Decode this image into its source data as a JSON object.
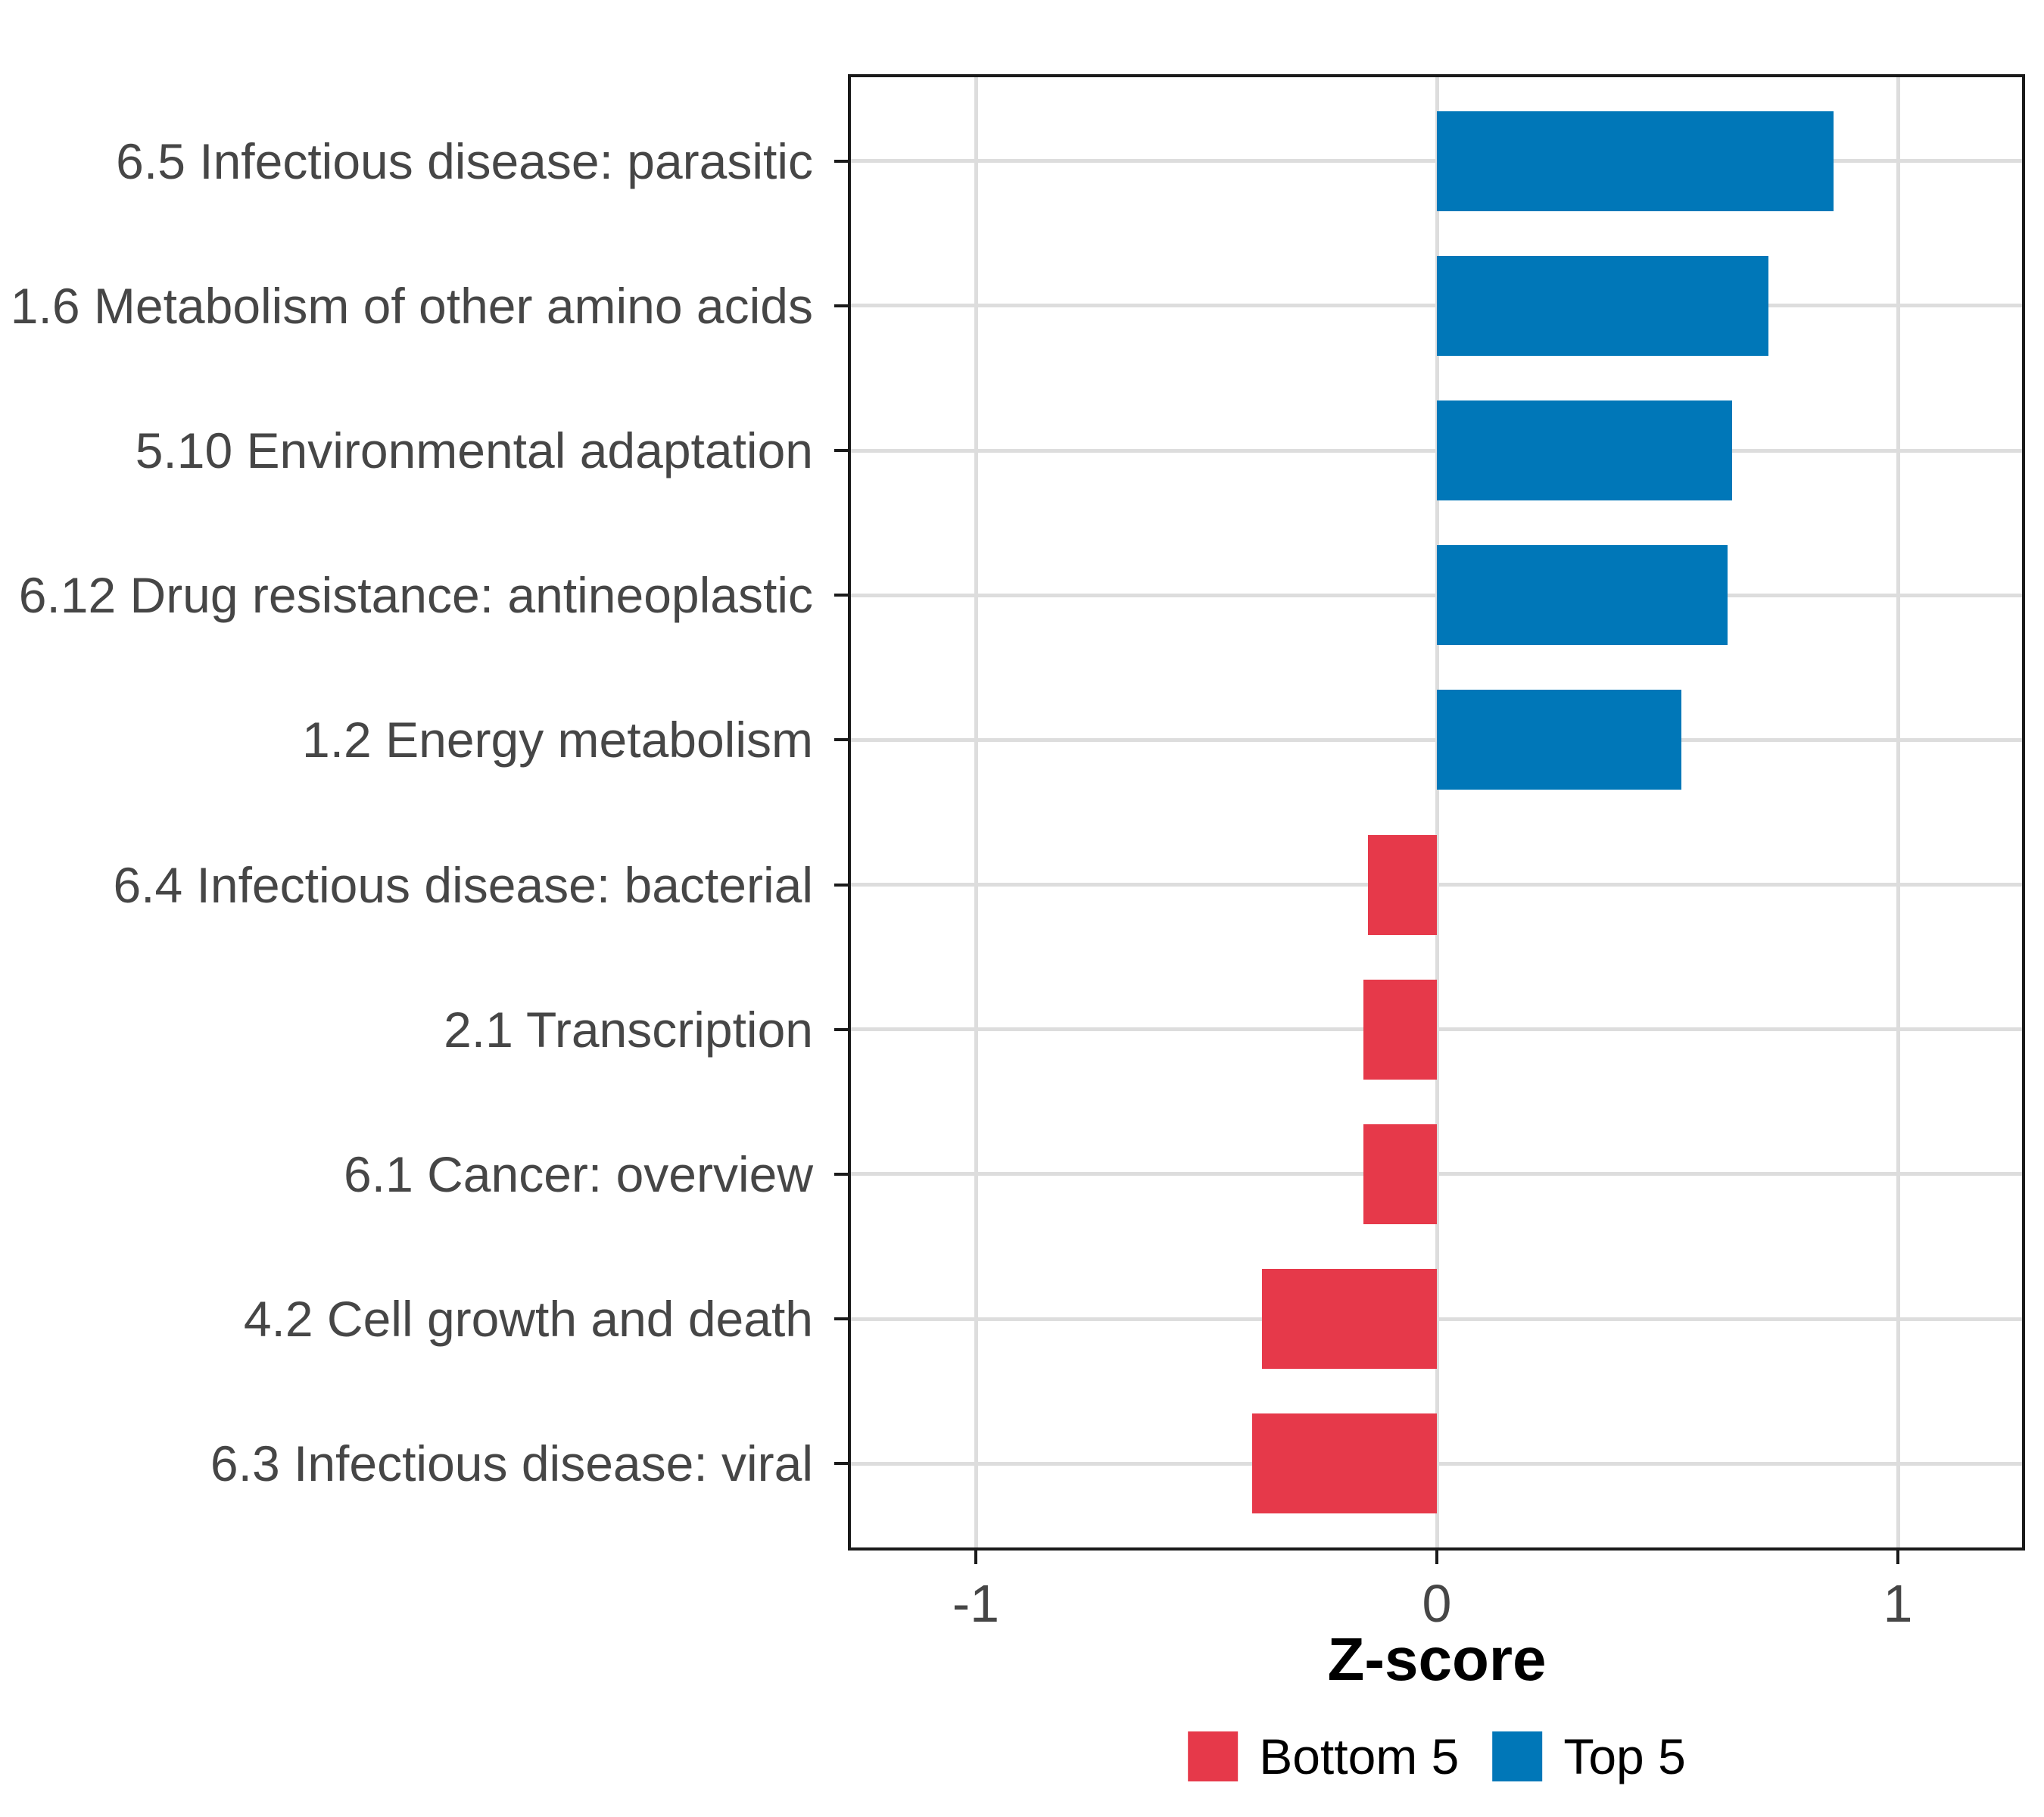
{
  "chart_data": {
    "type": "bar",
    "orientation": "horizontal",
    "categories": [
      "6.5 Infectious disease: parasitic",
      "1.6 Metabolism of other amino acids",
      "5.10 Environmental adaptation",
      "6.12 Drug resistance: antineoplastic",
      "1.2 Energy metabolism",
      "6.4 Infectious disease: bacterial",
      "2.1 Transcription",
      "6.1 Cancer: overview",
      "4.2 Cell growth and death",
      "6.3 Infectious disease: viral"
    ],
    "series": [
      {
        "name": "Z-score",
        "values": [
          0.86,
          0.72,
          0.64,
          0.63,
          0.53,
          -0.15,
          -0.16,
          -0.16,
          -0.38,
          -0.4
        ]
      }
    ],
    "group_of_each_bar": [
      "Top 5",
      "Top 5",
      "Top 5",
      "Top 5",
      "Top 5",
      "Bottom 5",
      "Bottom 5",
      "Bottom 5",
      "Bottom 5",
      "Bottom 5"
    ],
    "title": "",
    "xlabel": "Z-score",
    "ylabel": "",
    "xlim": [
      -1.28,
      1.28
    ],
    "x_ticks": [
      -1,
      0,
      1
    ],
    "x_tick_labels": [
      "-1",
      "0",
      "1"
    ],
    "grid": "major-only",
    "panel_border": true,
    "legend": {
      "position": "bottom",
      "entries": [
        {
          "label": "Bottom 5",
          "color": "#E6394A"
        },
        {
          "label": "Top 5",
          "color": "#0077B8"
        }
      ]
    },
    "colors": {
      "top5_blue": "#0077B8",
      "bottom5_red": "#E6394A",
      "gridline": "#DDDDDD",
      "axis_text": "#464646",
      "panel_border": "#1A1A1A"
    }
  }
}
